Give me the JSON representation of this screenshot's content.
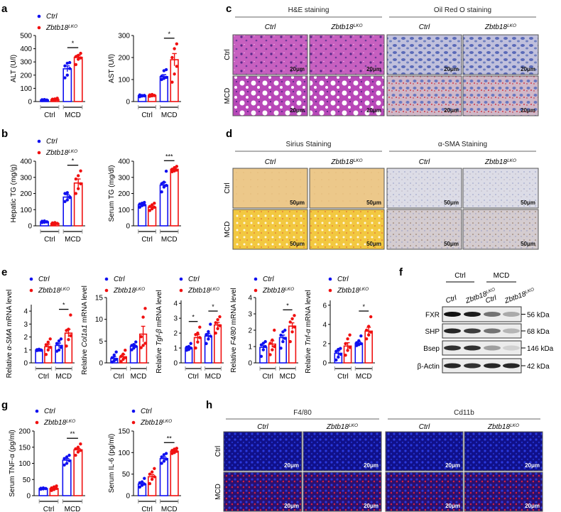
{
  "panel_labels": [
    "a",
    "b",
    "c",
    "d",
    "e",
    "f",
    "g",
    "h"
  ],
  "legend": {
    "ctrl": "Ctrl",
    "ko": "Zbtb18",
    "ko_sup": "LKO"
  },
  "groups": [
    "Ctrl",
    "MCD"
  ],
  "colors": {
    "ctrl": "#1010f0",
    "ko": "#f01010"
  },
  "chart_data": [
    {
      "type": "bar",
      "id": "alt",
      "ylabel_pre": "ALT (U/l)",
      "ylabel_gene": "",
      "ylabel_post": "",
      "ylim": [
        0,
        500
      ],
      "ticks": [
        0,
        100,
        200,
        300,
        400,
        500
      ],
      "means": [
        12,
        15,
        248,
        335
      ],
      "sem": [
        3,
        4,
        22,
        15
      ],
      "points": [
        [
          8,
          10,
          12,
          14,
          15,
          10
        ],
        [
          10,
          12,
          15,
          18,
          20,
          25
        ],
        [
          180,
          200,
          250,
          270,
          290,
          295
        ],
        [
          280,
          320,
          330,
          340,
          350,
          365
        ]
      ],
      "sig": [
        null,
        "*"
      ]
    },
    {
      "type": "bar",
      "id": "ast",
      "ylabel_pre": "AST (U/l)",
      "ylabel_gene": "",
      "ylabel_post": "",
      "ylim": [
        0,
        300
      ],
      "ticks": [
        0,
        100,
        200,
        300
      ],
      "means": [
        27,
        28,
        113,
        190
      ],
      "sem": [
        3,
        3,
        9,
        28
      ],
      "points": [
        [
          22,
          25,
          28,
          30,
          27,
          26
        ],
        [
          24,
          26,
          28,
          30,
          32,
          27
        ],
        [
          100,
          105,
          110,
          115,
          140,
          145
        ],
        [
          88,
          125,
          160,
          200,
          240,
          262
        ]
      ],
      "sig": [
        null,
        "*"
      ]
    },
    {
      "type": "bar",
      "id": "hepatic-tg",
      "ylabel_pre": "Hepatic TG (mg/g)",
      "ylabel_gene": "",
      "ylabel_post": "",
      "ylim": [
        0,
        400
      ],
      "ticks": [
        0,
        100,
        200,
        300,
        400
      ],
      "means": [
        25,
        15,
        178,
        265
      ],
      "sem": [
        3,
        3,
        15,
        25
      ],
      "points": [
        [
          20,
          22,
          25,
          28,
          30,
          24
        ],
        [
          8,
          10,
          15,
          18,
          20,
          14
        ],
        [
          150,
          160,
          180,
          200,
          205,
          175
        ],
        [
          200,
          230,
          260,
          290,
          310,
          340
        ]
      ],
      "sig": [
        null,
        "*"
      ]
    },
    {
      "type": "bar",
      "id": "serum-tg",
      "ylabel_pre": "Serum TG (mg/dl)",
      "ylabel_gene": "",
      "ylabel_post": "",
      "ylim": [
        0,
        400
      ],
      "ticks": [
        0,
        100,
        200,
        300,
        400
      ],
      "means": [
        130,
        115,
        252,
        350
      ],
      "sem": [
        6,
        8,
        18,
        5
      ],
      "points": [
        [
          115,
          125,
          130,
          135,
          140,
          145
        ],
        [
          95,
          105,
          115,
          120,
          130,
          140
        ],
        [
          210,
          240,
          250,
          260,
          270,
          338
        ],
        [
          335,
          340,
          345,
          350,
          360,
          368
        ]
      ],
      "sig": [
        null,
        "***"
      ]
    },
    {
      "type": "bar",
      "id": "a-sma",
      "ylabel_pre": "Relative ",
      "ylabel_gene": "α-SMA",
      "ylabel_post": " mRNA level",
      "ylim": [
        0,
        4.5
      ],
      "ticks": [
        0,
        1,
        2,
        3,
        4
      ],
      "means": [
        1.0,
        1.25,
        1.35,
        2.3
      ],
      "sem": [
        0.04,
        0.2,
        0.18,
        0.3
      ],
      "points": [
        [
          0.95,
          0.98,
          1.0,
          1.02,
          1.05,
          0.97
        ],
        [
          0.65,
          1.0,
          1.2,
          1.4,
          1.6,
          1.85
        ],
        [
          0.9,
          1.0,
          1.2,
          1.5,
          1.7,
          1.85
        ],
        [
          1.3,
          1.8,
          2.1,
          2.5,
          2.6,
          3.7
        ]
      ],
      "sig": [
        null,
        "*"
      ]
    },
    {
      "type": "bar",
      "id": "col1a1",
      "ylabel_pre": "Relative ",
      "ylabel_gene": "Col1a1",
      "ylabel_post": " mRNA level",
      "ylim": [
        0,
        15
      ],
      "ticks": [
        0,
        5,
        10,
        15
      ],
      "means": [
        1.0,
        1.4,
        3.8,
        6.6
      ],
      "sem": [
        0.4,
        0.5,
        0.4,
        1.8
      ],
      "points": [
        [
          0.2,
          0.5,
          0.8,
          1.2,
          1.8,
          2.5
        ],
        [
          0.3,
          0.8,
          1.2,
          1.5,
          2.0,
          2.9
        ],
        [
          3.0,
          3.4,
          3.8,
          4.0,
          4.2,
          4.8
        ],
        [
          3.5,
          4.0,
          4.5,
          6.0,
          10.5,
          12.5
        ]
      ],
      "sig": [
        null,
        null
      ]
    },
    {
      "type": "bar",
      "id": "tgf-b",
      "ylabel_pre": "Relative ",
      "ylabel_gene": "Tgf-β",
      "ylabel_post": " mRNA level",
      "ylim": [
        0,
        4.2
      ],
      "ticks": [
        0,
        1,
        2,
        3,
        4
      ],
      "means": [
        1.0,
        1.7,
        1.8,
        2.55
      ],
      "sem": [
        0.06,
        0.2,
        0.18,
        0.17
      ],
      "points": [
        [
          0.85,
          0.9,
          1.0,
          1.05,
          1.1,
          1.3
        ],
        [
          1.0,
          1.4,
          1.7,
          1.9,
          2.0,
          2.4
        ],
        [
          1.3,
          1.6,
          1.8,
          1.9,
          2.1,
          2.6
        ],
        [
          2.0,
          2.3,
          2.5,
          2.7,
          2.9,
          3.1
        ]
      ],
      "sig": [
        "*",
        "*"
      ]
    },
    {
      "type": "bar",
      "id": "f4-80",
      "ylabel_pre": "Relative ",
      "ylabel_gene": "F4/80",
      "ylabel_post": " mRNA level",
      "ylim": [
        0,
        4
      ],
      "ticks": [
        0,
        1,
        2,
        3,
        4
      ],
      "means": [
        0.95,
        1.15,
        1.55,
        2.25
      ],
      "sem": [
        0.1,
        0.2,
        0.15,
        0.2
      ],
      "points": [
        [
          0.4,
          0.8,
          1.0,
          1.1,
          1.2,
          1.3
        ],
        [
          0.5,
          0.8,
          1.0,
          1.2,
          1.4,
          2.0
        ],
        [
          0.9,
          1.3,
          1.5,
          1.7,
          1.9,
          2.0
        ],
        [
          1.3,
          1.9,
          2.2,
          2.5,
          2.7,
          2.9
        ]
      ],
      "sig": [
        null,
        "*"
      ]
    },
    {
      "type": "bar",
      "id": "tnf-a",
      "ylabel_pre": "Relative ",
      "ylabel_gene": "Tnf-α",
      "ylabel_post": " mRNA level",
      "ylim": [
        0,
        6.5
      ],
      "ticks": [
        0,
        2,
        4,
        6
      ],
      "means": [
        1.0,
        1.75,
        2.05,
        3.3
      ],
      "sem": [
        0.25,
        0.35,
        0.15,
        0.4
      ],
      "points": [
        [
          0.3,
          0.6,
          0.9,
          1.2,
          1.4,
          1.5
        ],
        [
          0.8,
          1.3,
          1.6,
          2.0,
          2.5,
          2.9
        ],
        [
          1.8,
          1.9,
          2.0,
          2.1,
          2.3,
          2.8
        ],
        [
          2.5,
          2.9,
          3.2,
          3.4,
          3.8,
          4.8
        ]
      ],
      "sig": [
        null,
        "*"
      ]
    },
    {
      "type": "bar",
      "id": "serum-tnf",
      "ylabel_pre": "Serum TNF-α (pg/ml)",
      "ylabel_gene": "",
      "ylabel_post": "",
      "ylim": [
        0,
        200
      ],
      "ticks": [
        0,
        50,
        100,
        150,
        200
      ],
      "means": [
        22,
        22,
        110,
        142
      ],
      "sem": [
        1,
        2,
        5,
        4
      ],
      "points": [
        [
          20,
          21,
          22,
          23,
          24,
          22
        ],
        [
          16,
          19,
          22,
          24,
          27,
          30
        ],
        [
          95,
          100,
          108,
          115,
          120,
          125
        ],
        [
          125,
          135,
          140,
          145,
          150,
          160
        ]
      ],
      "sig": [
        null,
        "**"
      ]
    },
    {
      "type": "bar",
      "id": "serum-il6",
      "ylabel_pre": "Serum IL-6 (pg/ml)",
      "ylabel_gene": "",
      "ylabel_post": "",
      "ylim": [
        0,
        150
      ],
      "ticks": [
        0,
        50,
        100,
        150
      ],
      "means": [
        27,
        44,
        86,
        103
      ],
      "sem": [
        3,
        5,
        4,
        2
      ],
      "points": [
        [
          20,
          24,
          27,
          30,
          32,
          40
        ],
        [
          28,
          38,
          44,
          50,
          55,
          63
        ],
        [
          75,
          80,
          85,
          90,
          95,
          98
        ],
        [
          98,
          100,
          103,
          105,
          108,
          110
        ]
      ],
      "sig": [
        null,
        "**"
      ]
    }
  ],
  "c": {
    "titles": [
      "H&E staining",
      "Oil Red O staining"
    ],
    "cols": [
      "Ctrl",
      "Zbtb18",
      "Ctrl",
      "Zbtb18"
    ],
    "sup": "LKO",
    "rows": [
      "Ctrl",
      "MCD"
    ],
    "scale": "20μm"
  },
  "d": {
    "titles": [
      "Sirius Staining",
      "α-SMA Staining"
    ],
    "cols": [
      "Ctrl",
      "Zbtb18",
      "Ctrl",
      "Zbtb18"
    ],
    "sup": "LKO",
    "rows": [
      "Ctrl",
      "MCD"
    ],
    "scale": "50μm"
  },
  "h": {
    "titles": [
      "F4/80",
      "Cd11b"
    ],
    "cols": [
      "Ctrl",
      "Zbtb18",
      "Ctrl",
      "Zbtb18"
    ],
    "sup": "LKO",
    "rows": [
      "Ctrl",
      "MCD"
    ],
    "scale": "20μm"
  },
  "f": {
    "groups": [
      "Ctrl",
      "MCD"
    ],
    "lanes": [
      "Ctrl",
      "Zbtb18",
      "Ctrl",
      "Zbtb18"
    ],
    "sup": "LKO",
    "proteins": [
      {
        "name": "FXR",
        "kda": "56 kDa",
        "intensity": [
          1,
          0.95,
          0.55,
          0.3
        ]
      },
      {
        "name": "SHP",
        "kda": "68 kDa",
        "intensity": [
          0.9,
          0.8,
          0.55,
          0.25
        ]
      },
      {
        "name": "Bsep",
        "kda": "146 kDa",
        "intensity": [
          0.85,
          0.85,
          0.35,
          0.12
        ]
      },
      {
        "name": "β-Actin",
        "kda": "42 kDa",
        "intensity": [
          0.9,
          0.85,
          0.9,
          0.9
        ]
      }
    ]
  }
}
